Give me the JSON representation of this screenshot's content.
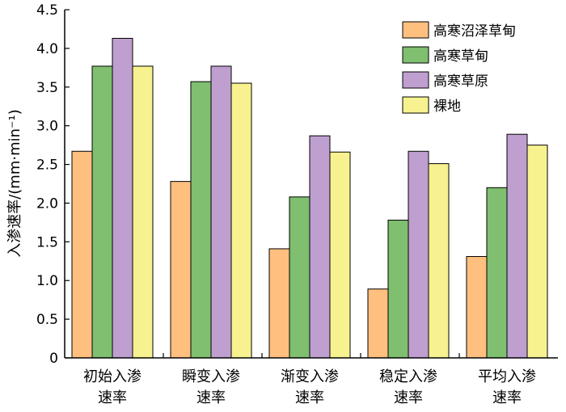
{
  "chart_data": {
    "type": "bar",
    "categories": [
      [
        "初始入渗",
        "速率"
      ],
      [
        "瞬变入渗",
        "速率"
      ],
      [
        "渐变入渗",
        "速率"
      ],
      [
        "稳定入渗",
        "速率"
      ],
      [
        "平均入渗",
        "速率"
      ]
    ],
    "series": [
      {
        "name": "高寒沼泽草甸",
        "color": "#ffbf7f",
        "values": [
          2.67,
          2.28,
          1.41,
          0.89,
          1.31
        ]
      },
      {
        "name": "高寒草甸",
        "color": "#7fbf6f",
        "values": [
          3.77,
          3.57,
          2.08,
          1.78,
          2.2
        ]
      },
      {
        "name": "高寒草原",
        "color": "#bf9fcf",
        "values": [
          4.13,
          3.77,
          2.87,
          2.67,
          2.89
        ]
      },
      {
        "name": "裸地",
        "color": "#f7f28f",
        "values": [
          3.77,
          3.55,
          2.66,
          2.51,
          2.75
        ]
      }
    ],
    "ylabel": "入渗速率/(mm·min⁻¹)",
    "ylim": [
      0,
      4.5
    ],
    "yticks": [
      "0",
      "0.5",
      "1.0",
      "1.5",
      "2.0",
      "2.5",
      "3.0",
      "3.5",
      "4.0",
      "4.5"
    ],
    "legend_position": "top-right",
    "grid": false
  }
}
